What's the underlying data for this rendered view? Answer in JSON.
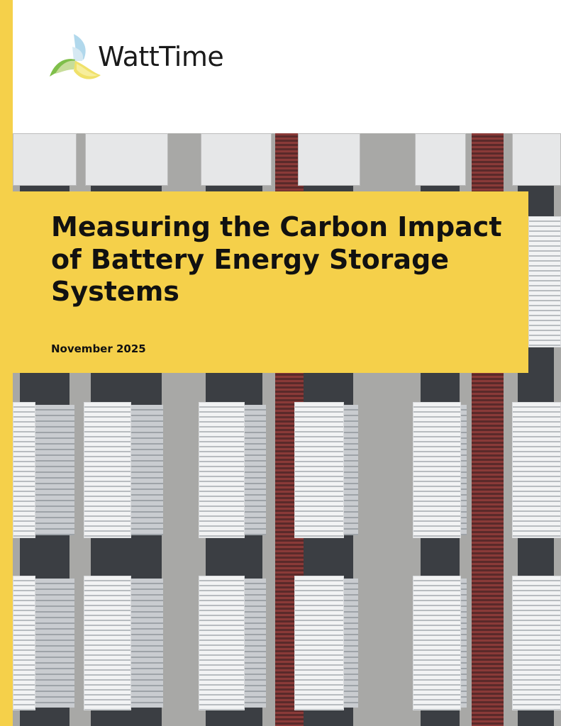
{
  "brand": {
    "name": "WattTime",
    "accent": "#f5d04a"
  },
  "cover": {
    "title": "Measuring the Carbon Impact of Battery Energy Storage Systems",
    "date": "November 2025"
  },
  "photo": {
    "subject": "aerial view of battery energy storage containers"
  }
}
